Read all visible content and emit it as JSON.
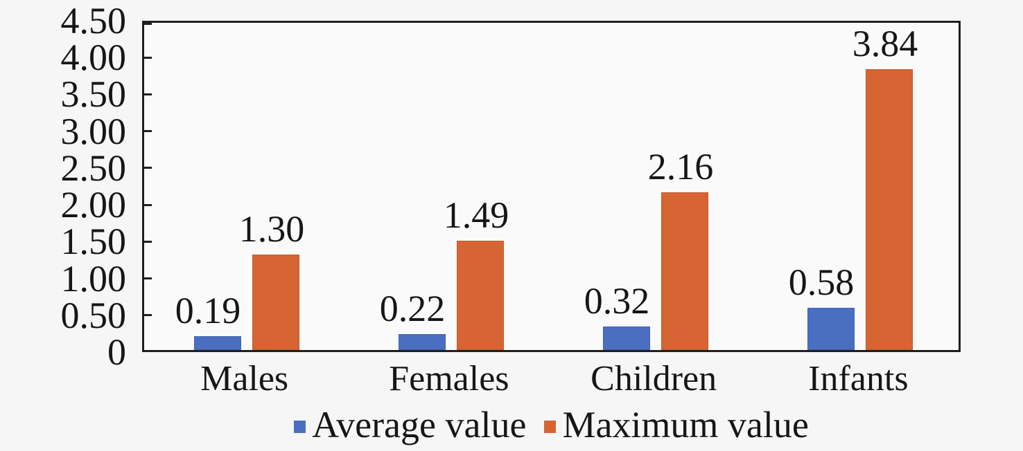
{
  "chart_data": {
    "type": "bar",
    "title": "",
    "xlabel": "",
    "ylabel": "",
    "categories": [
      "Males",
      "Females",
      "Children",
      "Infants"
    ],
    "series": [
      {
        "name": "Average value",
        "color": "#4a6fc0",
        "values": [
          0.19,
          0.22,
          0.32,
          0.58
        ],
        "labels": [
          "0.19",
          "0.22",
          "0.32",
          "0.58"
        ]
      },
      {
        "name": "Maximum value",
        "color": "#d76433",
        "values": [
          1.3,
          1.49,
          2.16,
          3.84
        ],
        "labels": [
          "1.30",
          "1.49",
          "2.16",
          "3.84"
        ]
      }
    ],
    "y_axis": {
      "min": 0,
      "max": 4.5,
      "step": 0.5,
      "tick_labels": [
        "4.50",
        "4.00",
        "3.50",
        "3.00",
        "2.50",
        "2.00",
        "1.50",
        "1.00",
        "0.50",
        "0"
      ]
    },
    "grid": false,
    "legend": {
      "position": "bottom",
      "entries": [
        "Average value",
        "Maximum value"
      ]
    },
    "colors": {
      "axis": "#1f1f1f",
      "text": "#161616",
      "background": "#f6f6f6",
      "plot_background": "#fafafa"
    }
  }
}
